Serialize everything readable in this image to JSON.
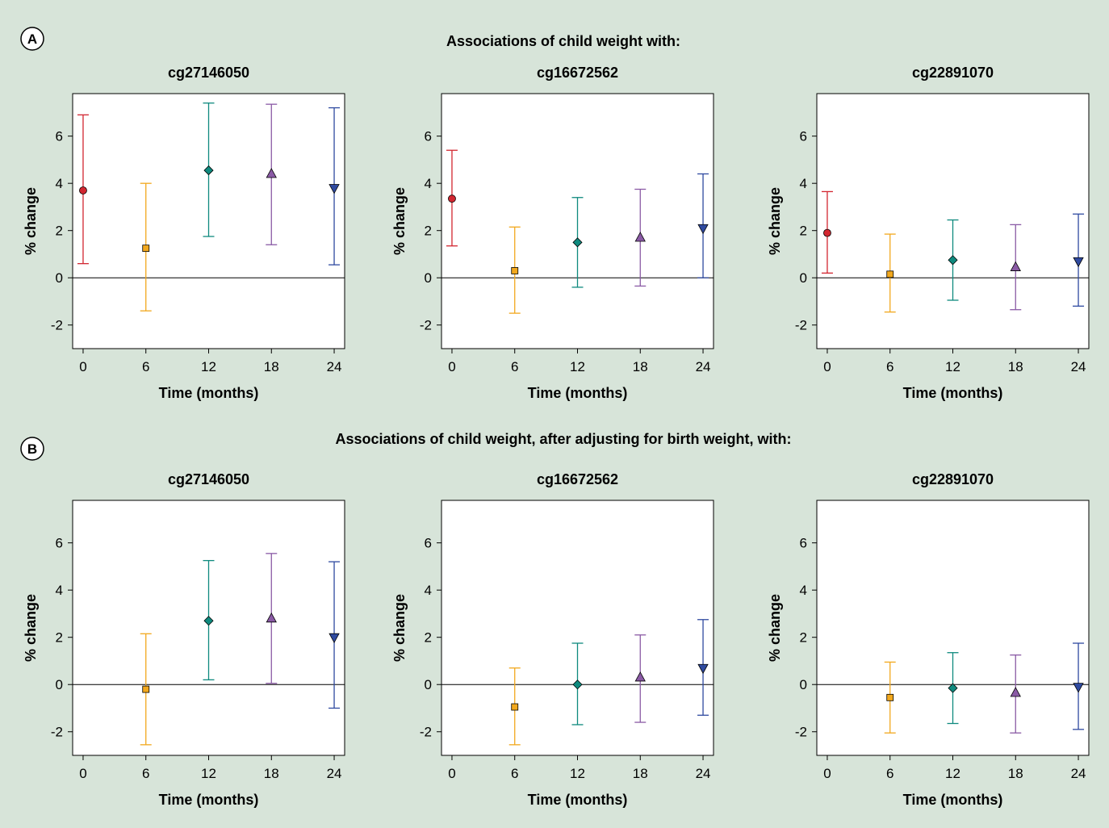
{
  "figure": {
    "background": "#d7e4d9",
    "sections": [
      {
        "label": "A",
        "title": "Associations of child weight with:"
      },
      {
        "label": "B",
        "title": "Associations of child weight, after adjusting for birth weight, with:"
      }
    ],
    "timepoint_colors": {
      "0": "#d22630",
      "6": "#f2a81d",
      "12": "#0f8a7e",
      "18": "#8a5aa5",
      "24": "#2f4aa0"
    },
    "timepoint_markers": {
      "0": "circle",
      "6": "square",
      "12": "diamond",
      "18": "triangle-up",
      "24": "triangle-down"
    }
  },
  "chart_data": [
    {
      "type": "scatter",
      "section": "A",
      "title": "cg27146050",
      "xlabel": "Time (months)",
      "ylabel": "% change",
      "x_ticks": [
        0,
        6,
        12,
        18,
        24
      ],
      "y_ticks": [
        -2,
        0,
        2,
        4,
        6
      ],
      "xlim": [
        -1,
        25
      ],
      "ylim": [
        -3,
        7.8
      ],
      "reference_line": 0,
      "points": [
        {
          "x": 0,
          "y": 3.7,
          "lower": 0.6,
          "upper": 6.9
        },
        {
          "x": 6,
          "y": 1.25,
          "lower": -1.4,
          "upper": 4.0
        },
        {
          "x": 12,
          "y": 4.55,
          "lower": 1.75,
          "upper": 7.4
        },
        {
          "x": 18,
          "y": 4.4,
          "lower": 1.4,
          "upper": 7.35
        },
        {
          "x": 24,
          "y": 3.8,
          "lower": 0.55,
          "upper": 7.2
        }
      ]
    },
    {
      "type": "scatter",
      "section": "A",
      "title": "cg16672562",
      "xlabel": "Time (months)",
      "ylabel": "% change",
      "x_ticks": [
        0,
        6,
        12,
        18,
        24
      ],
      "y_ticks": [
        -2,
        0,
        2,
        4,
        6
      ],
      "xlim": [
        -1,
        25
      ],
      "ylim": [
        -3,
        7.8
      ],
      "reference_line": 0,
      "points": [
        {
          "x": 0,
          "y": 3.35,
          "lower": 1.35,
          "upper": 5.4
        },
        {
          "x": 6,
          "y": 0.3,
          "lower": -1.5,
          "upper": 2.15
        },
        {
          "x": 12,
          "y": 1.5,
          "lower": -0.4,
          "upper": 3.4
        },
        {
          "x": 18,
          "y": 1.7,
          "lower": -0.35,
          "upper": 3.75
        },
        {
          "x": 24,
          "y": 2.1,
          "lower": 0.0,
          "upper": 4.4
        }
      ]
    },
    {
      "type": "scatter",
      "section": "A",
      "title": "cg22891070",
      "xlabel": "Time (months)",
      "ylabel": "% change",
      "x_ticks": [
        0,
        6,
        12,
        18,
        24
      ],
      "y_ticks": [
        -2,
        0,
        2,
        4,
        6
      ],
      "xlim": [
        -1,
        25
      ],
      "ylim": [
        -3,
        7.8
      ],
      "reference_line": 0,
      "points": [
        {
          "x": 0,
          "y": 1.9,
          "lower": 0.2,
          "upper": 3.65
        },
        {
          "x": 6,
          "y": 0.15,
          "lower": -1.45,
          "upper": 1.85
        },
        {
          "x": 12,
          "y": 0.75,
          "lower": -0.95,
          "upper": 2.45
        },
        {
          "x": 18,
          "y": 0.45,
          "lower": -1.35,
          "upper": 2.25
        },
        {
          "x": 24,
          "y": 0.7,
          "lower": -1.2,
          "upper": 2.7
        }
      ]
    },
    {
      "type": "scatter",
      "section": "B",
      "title": "cg27146050",
      "xlabel": "Time (months)",
      "ylabel": "% change",
      "x_ticks": [
        0,
        6,
        12,
        18,
        24
      ],
      "y_ticks": [
        -2,
        0,
        2,
        4,
        6
      ],
      "xlim": [
        -1,
        25
      ],
      "ylim": [
        -3,
        7.8
      ],
      "reference_line": 0,
      "points": [
        {
          "x": 6,
          "y": -0.2,
          "lower": -2.55,
          "upper": 2.15
        },
        {
          "x": 12,
          "y": 2.7,
          "lower": 0.2,
          "upper": 5.25
        },
        {
          "x": 18,
          "y": 2.8,
          "lower": 0.05,
          "upper": 5.55
        },
        {
          "x": 24,
          "y": 2.0,
          "lower": -1.0,
          "upper": 5.2
        }
      ]
    },
    {
      "type": "scatter",
      "section": "B",
      "title": "cg16672562",
      "xlabel": "Time (months)",
      "ylabel": "% change",
      "x_ticks": [
        0,
        6,
        12,
        18,
        24
      ],
      "y_ticks": [
        -2,
        0,
        2,
        4,
        6
      ],
      "xlim": [
        -1,
        25
      ],
      "ylim": [
        -3,
        7.8
      ],
      "reference_line": 0,
      "points": [
        {
          "x": 6,
          "y": -0.95,
          "lower": -2.55,
          "upper": 0.7
        },
        {
          "x": 12,
          "y": 0.0,
          "lower": -1.7,
          "upper": 1.75
        },
        {
          "x": 18,
          "y": 0.3,
          "lower": -1.6,
          "upper": 2.1
        },
        {
          "x": 24,
          "y": 0.7,
          "lower": -1.3,
          "upper": 2.75
        }
      ]
    },
    {
      "type": "scatter",
      "section": "B",
      "title": "cg22891070",
      "xlabel": "Time (months)",
      "ylabel": "% change",
      "x_ticks": [
        0,
        6,
        12,
        18,
        24
      ],
      "y_ticks": [
        -2,
        0,
        2,
        4,
        6
      ],
      "xlim": [
        -1,
        25
      ],
      "ylim": [
        -3,
        7.8
      ],
      "reference_line": 0,
      "points": [
        {
          "x": 6,
          "y": -0.55,
          "lower": -2.05,
          "upper": 0.95
        },
        {
          "x": 12,
          "y": -0.15,
          "lower": -1.65,
          "upper": 1.35
        },
        {
          "x": 18,
          "y": -0.35,
          "lower": -2.05,
          "upper": 1.25
        },
        {
          "x": 24,
          "y": -0.1,
          "lower": -1.9,
          "upper": 1.75
        }
      ]
    }
  ]
}
